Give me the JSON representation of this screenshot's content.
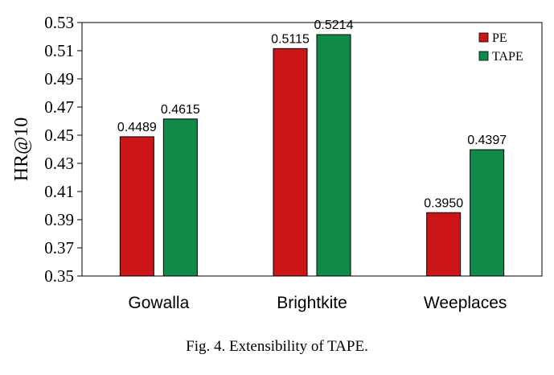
{
  "chart_data": {
    "type": "bar",
    "title": "",
    "xlabel": "",
    "ylabel": "HR@10",
    "categories": [
      "Gowalla",
      "Brightkite",
      "Weeplaces"
    ],
    "series": [
      {
        "name": "PE",
        "color": "#cc1517",
        "values": [
          0.4489,
          0.5115,
          0.395
        ],
        "labels": [
          "0.4489",
          "0.5115",
          "0.3950"
        ]
      },
      {
        "name": "TAPE",
        "color": "#0f8a48",
        "values": [
          0.4615,
          0.5214,
          0.4397
        ],
        "labels": [
          "0.4615",
          "0.5214",
          "0.4397"
        ]
      }
    ],
    "ylim": [
      0.35,
      0.53
    ],
    "yticks": [
      "0.35",
      "0.37",
      "0.39",
      "0.41",
      "0.43",
      "0.45",
      "0.47",
      "0.49",
      "0.51",
      "0.53"
    ],
    "grid": false,
    "legend_position": "top-right"
  },
  "caption": "Fig. 4.  Extensibility of TAPE."
}
